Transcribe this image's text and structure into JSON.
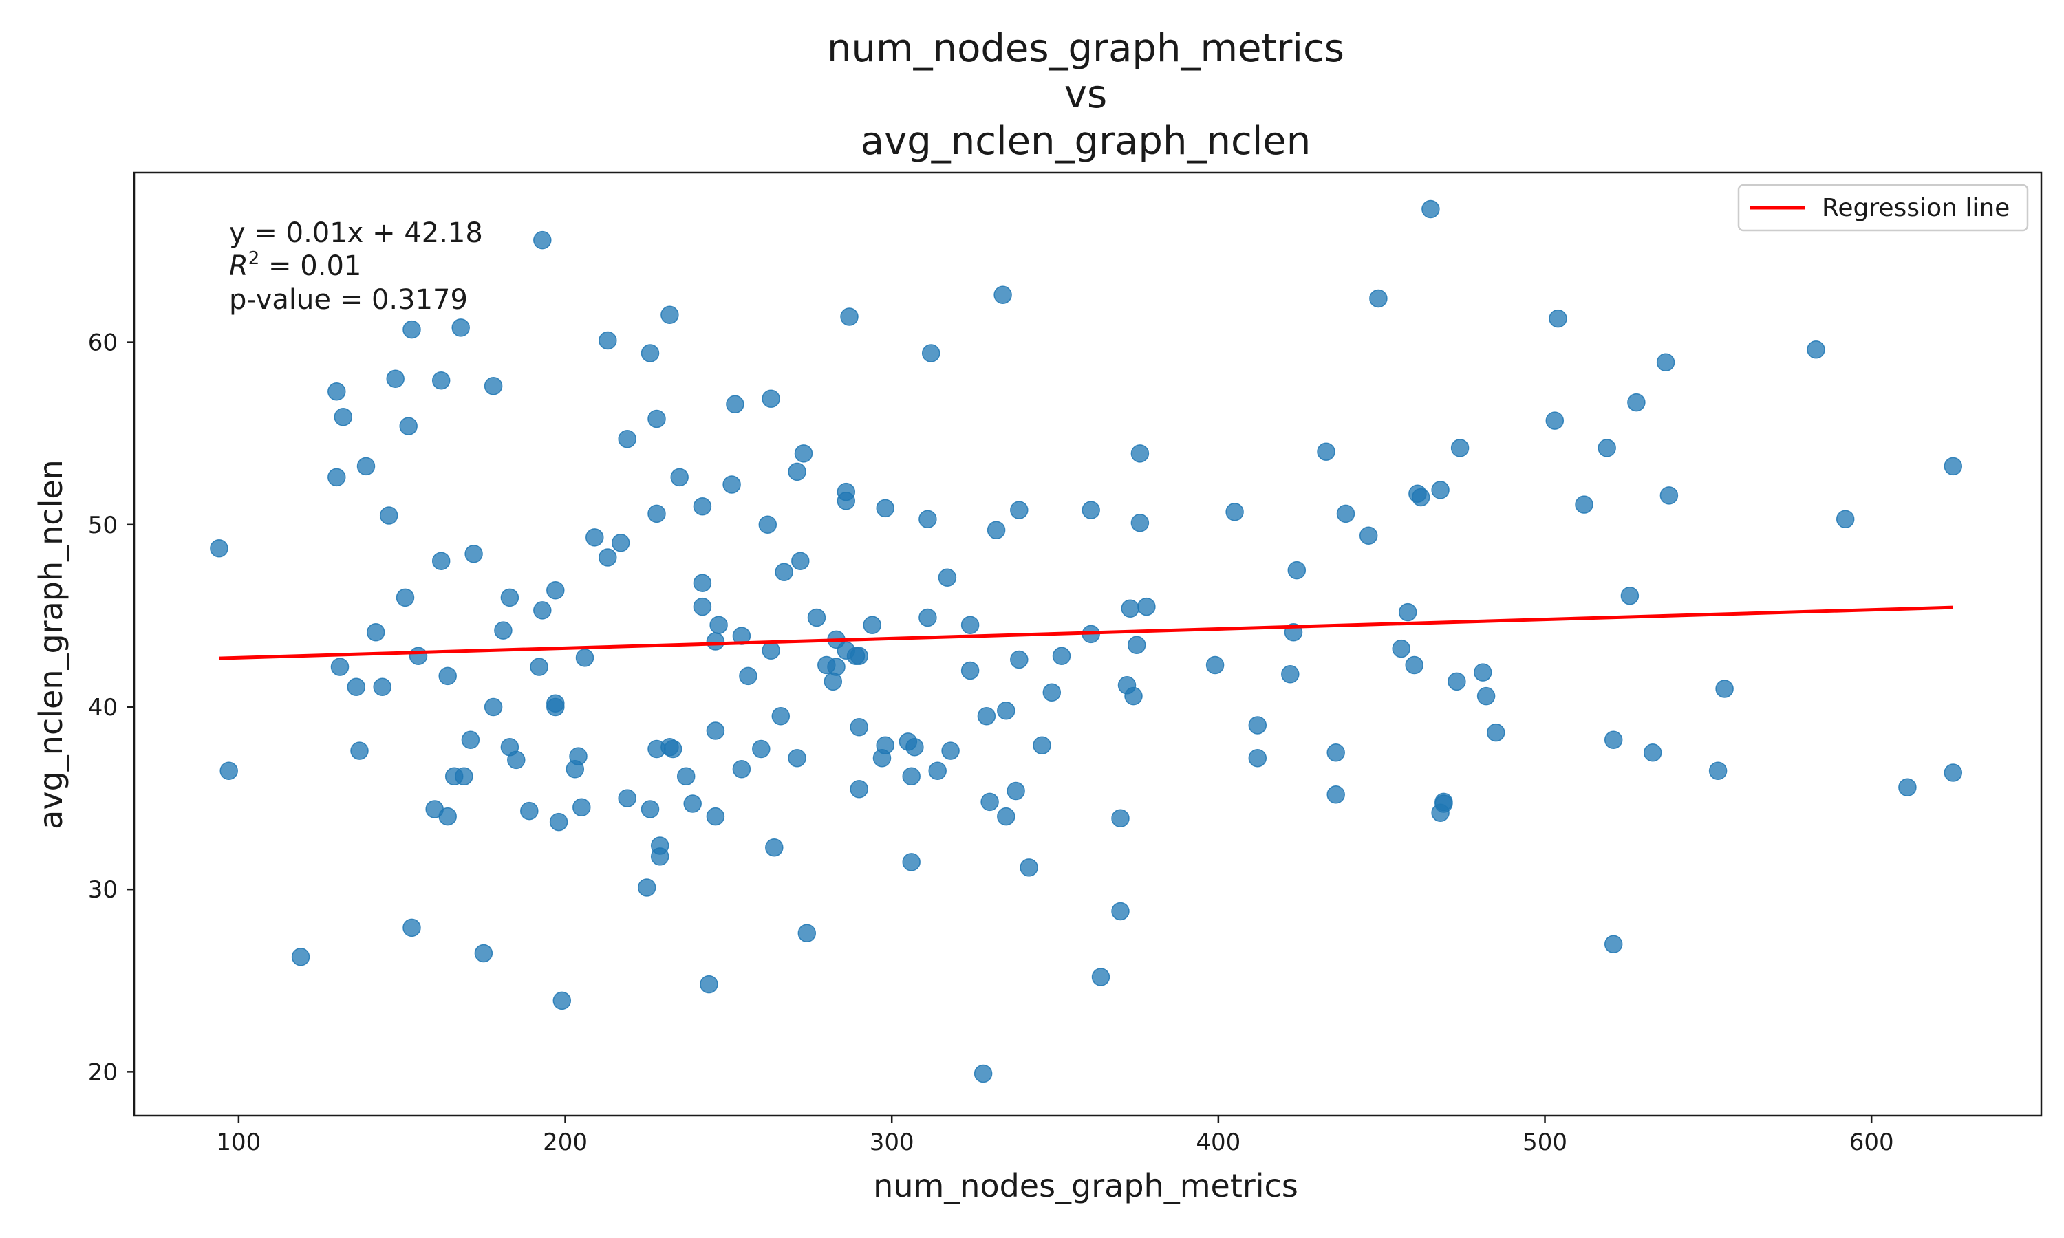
{
  "chart_data": {
    "type": "scatter",
    "title_lines": [
      "num_nodes_graph_metrics",
      "vs",
      "avg_nclen_graph_nclen"
    ],
    "xlabel": "num_nodes_graph_metrics",
    "ylabel": "avg_nclen_graph_nclen",
    "xlim": [
      68,
      652
    ],
    "ylim": [
      17.6,
      69.3
    ],
    "xticks": [
      100,
      200,
      300,
      400,
      500,
      600
    ],
    "yticks": [
      20,
      30,
      40,
      50,
      60
    ],
    "grid": false,
    "legend": {
      "position": "top-right",
      "entries": [
        "Regression line"
      ]
    },
    "annotations": {
      "equation": "y = 0.01x + 42.18",
      "r2_prefix": "R",
      "r2_sup": "2",
      "r2_suffix": " = 0.01",
      "pvalue": "p-value = 0.3179"
    },
    "colors": {
      "points": "#1f77b4",
      "regression": "#ff0000",
      "axes": "#1a1a1a"
    },
    "regression": {
      "slope": 0.00525,
      "intercept": 42.18,
      "x_range": [
        94,
        625
      ]
    },
    "points": [
      [
        94,
        48.7
      ],
      [
        97,
        36.5
      ],
      [
        119,
        26.3
      ],
      [
        130,
        57.3
      ],
      [
        130,
        52.6
      ],
      [
        131,
        42.2
      ],
      [
        132,
        55.9
      ],
      [
        136,
        41.1
      ],
      [
        137,
        37.6
      ],
      [
        139,
        53.2
      ],
      [
        142,
        44.1
      ],
      [
        144,
        41.1
      ],
      [
        146,
        50.5
      ],
      [
        148,
        58.0
      ],
      [
        151,
        46.0
      ],
      [
        152,
        55.4
      ],
      [
        153,
        60.7
      ],
      [
        153,
        27.9
      ],
      [
        155,
        42.8
      ],
      [
        160,
        34.4
      ],
      [
        162,
        57.9
      ],
      [
        162,
        48.0
      ],
      [
        164,
        34.0
      ],
      [
        164,
        41.7
      ],
      [
        166,
        36.2
      ],
      [
        168,
        60.8
      ],
      [
        169,
        36.2
      ],
      [
        171,
        38.2
      ],
      [
        172,
        48.4
      ],
      [
        175,
        26.5
      ],
      [
        178,
        57.6
      ],
      [
        178,
        40.0
      ],
      [
        181,
        44.2
      ],
      [
        183,
        46.0
      ],
      [
        183,
        37.8
      ],
      [
        185,
        37.1
      ],
      [
        189,
        34.3
      ],
      [
        192,
        42.2
      ],
      [
        193,
        45.3
      ],
      [
        193,
        65.6
      ],
      [
        197,
        46.4
      ],
      [
        197,
        40.2
      ],
      [
        197,
        40.0
      ],
      [
        198,
        33.7
      ],
      [
        199,
        23.9
      ],
      [
        203,
        36.6
      ],
      [
        204,
        37.3
      ],
      [
        205,
        34.5
      ],
      [
        206,
        42.7
      ],
      [
        209,
        49.3
      ],
      [
        213,
        48.2
      ],
      [
        213,
        60.1
      ],
      [
        217,
        49.0
      ],
      [
        219,
        54.7
      ],
      [
        219,
        35.0
      ],
      [
        225,
        30.1
      ],
      [
        226,
        34.4
      ],
      [
        226,
        59.4
      ],
      [
        228,
        55.8
      ],
      [
        228,
        50.6
      ],
      [
        228,
        37.7
      ],
      [
        229,
        32.4
      ],
      [
        229,
        31.8
      ],
      [
        232,
        61.5
      ],
      [
        232,
        37.8
      ],
      [
        233,
        37.7
      ],
      [
        235,
        52.6
      ],
      [
        237,
        36.2
      ],
      [
        239,
        34.7
      ],
      [
        242,
        51.0
      ],
      [
        242,
        46.8
      ],
      [
        242,
        45.5
      ],
      [
        244,
        24.8
      ],
      [
        246,
        43.6
      ],
      [
        246,
        38.7
      ],
      [
        246,
        34.0
      ],
      [
        247,
        44.5
      ],
      [
        251,
        52.2
      ],
      [
        252,
        56.6
      ],
      [
        254,
        43.9
      ],
      [
        254,
        36.6
      ],
      [
        256,
        41.7
      ],
      [
        260,
        37.7
      ],
      [
        262,
        50.0
      ],
      [
        263,
        56.9
      ],
      [
        263,
        43.1
      ],
      [
        264,
        32.3
      ],
      [
        266,
        39.5
      ],
      [
        267,
        47.4
      ],
      [
        271,
        52.9
      ],
      [
        271,
        37.2
      ],
      [
        272,
        48.0
      ],
      [
        273,
        53.9
      ],
      [
        274,
        27.6
      ],
      [
        277,
        44.9
      ],
      [
        280,
        42.3
      ],
      [
        282,
        41.4
      ],
      [
        283,
        42.2
      ],
      [
        283,
        43.7
      ],
      [
        286,
        51.8
      ],
      [
        286,
        51.3
      ],
      [
        286,
        43.1
      ],
      [
        287,
        61.4
      ],
      [
        289,
        42.8
      ],
      [
        290,
        42.8
      ],
      [
        290,
        35.5
      ],
      [
        290,
        38.9
      ],
      [
        294,
        44.5
      ],
      [
        297,
        37.2
      ],
      [
        298,
        50.9
      ],
      [
        298,
        37.9
      ],
      [
        305,
        38.1
      ],
      [
        306,
        31.5
      ],
      [
        306,
        36.2
      ],
      [
        307,
        37.8
      ],
      [
        311,
        50.3
      ],
      [
        311,
        44.9
      ],
      [
        312,
        59.4
      ],
      [
        314,
        36.5
      ],
      [
        317,
        47.1
      ],
      [
        318,
        37.6
      ],
      [
        324,
        42.0
      ],
      [
        324,
        44.5
      ],
      [
        329,
        39.5
      ],
      [
        328,
        19.9
      ],
      [
        330,
        34.8
      ],
      [
        332,
        49.7
      ],
      [
        334,
        62.6
      ],
      [
        335,
        34.0
      ],
      [
        335,
        39.8
      ],
      [
        338,
        35.4
      ],
      [
        339,
        50.8
      ],
      [
        339,
        42.6
      ],
      [
        342,
        31.2
      ],
      [
        346,
        37.9
      ],
      [
        349,
        40.8
      ],
      [
        352,
        42.8
      ],
      [
        361,
        50.8
      ],
      [
        361,
        44.0
      ],
      [
        364,
        25.2
      ],
      [
        370,
        33.9
      ],
      [
        370,
        28.8
      ],
      [
        372,
        41.2
      ],
      [
        373,
        45.4
      ],
      [
        374,
        40.6
      ],
      [
        375,
        43.4
      ],
      [
        376,
        53.9
      ],
      [
        376,
        50.1
      ],
      [
        378,
        45.5
      ],
      [
        399,
        42.3
      ],
      [
        405,
        50.7
      ],
      [
        412,
        39.0
      ],
      [
        412,
        37.2
      ],
      [
        422,
        41.8
      ],
      [
        423,
        44.1
      ],
      [
        424,
        47.5
      ],
      [
        433,
        54.0
      ],
      [
        436,
        37.5
      ],
      [
        436,
        35.2
      ],
      [
        439,
        50.6
      ],
      [
        446,
        49.4
      ],
      [
        449,
        62.4
      ],
      [
        456,
        43.2
      ],
      [
        458,
        45.2
      ],
      [
        460,
        42.3
      ],
      [
        461,
        51.7
      ],
      [
        462,
        51.5
      ],
      [
        465,
        67.3
      ],
      [
        468,
        51.9
      ],
      [
        468,
        34.2
      ],
      [
        469,
        34.8
      ],
      [
        469,
        34.7
      ],
      [
        473,
        41.4
      ],
      [
        474,
        54.2
      ],
      [
        481,
        41.9
      ],
      [
        482,
        40.6
      ],
      [
        485,
        38.6
      ],
      [
        503,
        55.7
      ],
      [
        504,
        61.3
      ],
      [
        512,
        51.1
      ],
      [
        519,
        54.2
      ],
      [
        521,
        38.2
      ],
      [
        521,
        27.0
      ],
      [
        526,
        46.1
      ],
      [
        528,
        56.7
      ],
      [
        533,
        37.5
      ],
      [
        537,
        58.9
      ],
      [
        538,
        51.6
      ],
      [
        553,
        36.5
      ],
      [
        555,
        41.0
      ],
      [
        583,
        59.6
      ],
      [
        592,
        50.3
      ],
      [
        611,
        35.6
      ],
      [
        625,
        53.2
      ],
      [
        625,
        36.4
      ]
    ]
  }
}
